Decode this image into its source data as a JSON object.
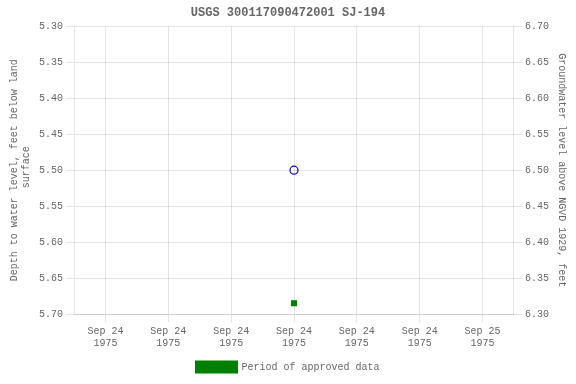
{
  "chart_data": {
    "type": "scatter",
    "title": "USGS 300117090472001 SJ-194",
    "y_label": "Depth to water level, feet below land\n surface",
    "y2_label": "Groundwater level above NGVD 1929, feet",
    "categories": [
      "Sep 24\n1975",
      "Sep 24\n1975",
      "Sep 24\n1975",
      "Sep 24\n1975",
      "Sep 24\n1975",
      "Sep 24\n1975",
      "Sep 25\n1975"
    ],
    "series": [
      {
        "color": "#0000bb",
        "marker": "open_circle",
        "values": [
          null,
          null,
          null,
          5.5,
          null,
          null,
          null
        ]
      },
      {
        "name": "Period of approved data",
        "color": "#008000",
        "marker": "square",
        "values": [
          null,
          null,
          null,
          5.685,
          null,
          null,
          null
        ]
      }
    ],
    "ylim": [
      5.7,
      5.3
    ],
    "yticks": [
      {
        "value": 5.3,
        "label": "5.30"
      },
      5.35,
      {
        "value": 5.4,
        "label": "5.40"
      },
      5.45,
      {
        "value": 5.5,
        "label": "5.50"
      },
      5.55,
      {
        "value": 5.6,
        "label": "5.60"
      },
      5.65,
      {
        "value": 5.7,
        "label": "5.70"
      }
    ],
    "y2lim": [
      6.3,
      6.7
    ],
    "y2ticks": [
      {
        "value": 6.3,
        "label": "6.30"
      },
      6.35,
      {
        "value": 6.4,
        "label": "6.40"
      },
      6.45,
      {
        "value": 6.5,
        "label": "6.50"
      },
      6.55,
      {
        "value": 6.6,
        "label": "6.60"
      },
      6.65,
      {
        "value": 6.7,
        "label": "6.70"
      }
    ],
    "grid": true,
    "legend": "bottom"
  }
}
